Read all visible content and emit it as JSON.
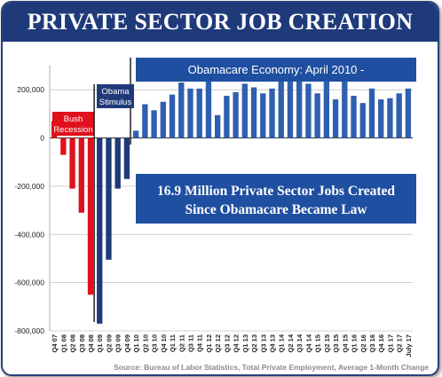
{
  "header": {
    "title": "PRIVATE SECTOR JOB CREATION"
  },
  "source": "Source: Bureau of Labor Statistics, Total Private Employment, Average 1-Month Change",
  "colors": {
    "header": "#1f3a7a",
    "recession": "#e0101c",
    "stimulus": "#1f3a7a",
    "obamacare": "#2f5fb0",
    "axis": "#333333"
  },
  "chart_data": {
    "type": "bar",
    "ylim": [
      -800000,
      300000
    ],
    "yticks": [
      200000,
      0,
      -200000,
      -400000,
      -600000,
      -800000
    ],
    "ytick_labels": [
      "200,000",
      "0",
      "-200,000",
      "-400,000",
      "-600,000",
      "-800,000"
    ],
    "grid": true,
    "categories": [
      "Q4 07",
      "Q1 08",
      "Q2 08",
      "Q3 08",
      "Q4 08",
      "Q1 09",
      "Q2 09",
      "Q3 09",
      "Q4 09",
      "Q1 10",
      "Q2 10",
      "Q3 10",
      "Q4 10",
      "Q1 11",
      "Q2 11",
      "Q3 11",
      "Q4 11",
      "Q1 12",
      "Q2 12",
      "Q3 12",
      "Q4 12",
      "Q1 13",
      "Q2 13",
      "Q3 13",
      "Q4 13",
      "Q1 14",
      "Q2 14",
      "Q3 14",
      "Q4 14",
      "Q1 15",
      "Q2 15",
      "Q3 15",
      "Q4 15",
      "Q1 16",
      "Q2 16",
      "Q3 16",
      "Q4 16",
      "Q1 17",
      "Q2 17",
      "July 17"
    ],
    "values": [
      70000,
      -70000,
      -210000,
      -310000,
      -650000,
      -770000,
      -505000,
      -210000,
      -170000,
      30000,
      140000,
      115000,
      150000,
      180000,
      230000,
      205000,
      205000,
      285000,
      95000,
      175000,
      190000,
      225000,
      210000,
      185000,
      205000,
      275000,
      235000,
      255000,
      225000,
      185000,
      255000,
      160000,
      270000,
      175000,
      145000,
      205000,
      160000,
      165000,
      185000,
      205000
    ],
    "groups": [
      {
        "name": "Bush Recession",
        "start": 0,
        "end": 4,
        "color": "#e0101c"
      },
      {
        "name": "Obama Stimulus",
        "start": 5,
        "end": 8,
        "color": "#1f3a7a"
      },
      {
        "name": "Obamacare Economy: April 2010 -",
        "start": 9,
        "end": 39,
        "color": "#2f5fb0"
      }
    ],
    "annotations": {
      "bush": "Bush Recession",
      "stimulus": "Obama Stimulus",
      "obamacare": "Obamacare Economy: April 2010 -",
      "callout_line1": "16.9 Million Private Sector Jobs Created",
      "callout_line2": "Since Obamacare Became Law"
    }
  }
}
